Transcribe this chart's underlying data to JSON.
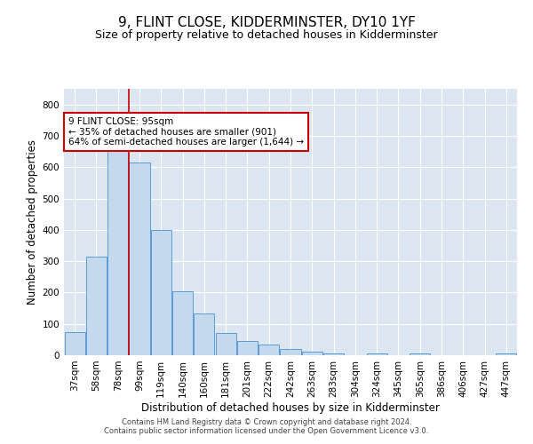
{
  "title": "9, FLINT CLOSE, KIDDERMINSTER, DY10 1YF",
  "subtitle": "Size of property relative to detached houses in Kidderminster",
  "xlabel": "Distribution of detached houses by size in Kidderminster",
  "ylabel": "Number of detached properties",
  "categories": [
    "37sqm",
    "58sqm",
    "78sqm",
    "99sqm",
    "119sqm",
    "140sqm",
    "160sqm",
    "181sqm",
    "201sqm",
    "222sqm",
    "242sqm",
    "263sqm",
    "283sqm",
    "304sqm",
    "324sqm",
    "345sqm",
    "365sqm",
    "386sqm",
    "406sqm",
    "427sqm",
    "447sqm"
  ],
  "values": [
    75,
    315,
    665,
    615,
    400,
    205,
    133,
    70,
    45,
    35,
    20,
    12,
    7,
    0,
    5,
    0,
    7,
    0,
    0,
    0,
    7
  ],
  "bar_color": "#c5d9ee",
  "bar_edge_color": "#5b9bd5",
  "vline_color": "#cc0000",
  "annotation_text": "9 FLINT CLOSE: 95sqm\n← 35% of detached houses are smaller (901)\n64% of semi-detached houses are larger (1,644) →",
  "annotation_box_color": "#ffffff",
  "annotation_box_edge": "#cc0000",
  "ylim": [
    0,
    850
  ],
  "yticks": [
    0,
    100,
    200,
    300,
    400,
    500,
    600,
    700,
    800
  ],
  "plot_bg_color": "#dce6f1",
  "footer_line1": "Contains HM Land Registry data © Crown copyright and database right 2024.",
  "footer_line2": "Contains public sector information licensed under the Open Government Licence v3.0.",
  "title_fontsize": 11,
  "subtitle_fontsize": 9,
  "tick_fontsize": 7.5,
  "ylabel_fontsize": 8.5,
  "xlabel_fontsize": 8.5,
  "annotation_fontsize": 7.5,
  "footer_fontsize": 6
}
